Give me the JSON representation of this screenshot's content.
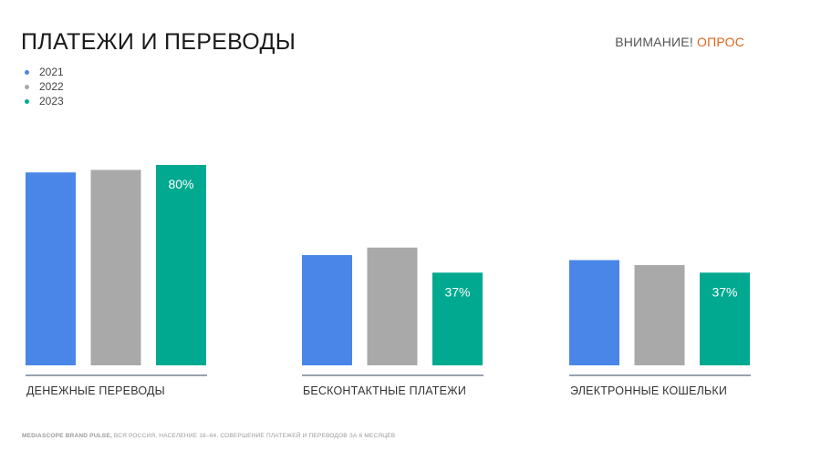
{
  "title": "ПЛАТЕЖИ И ПЕРЕВОДЫ",
  "badge": {
    "prefix": "ВНИМАНИЕ!",
    "accent": "ОПРОС"
  },
  "footnote": {
    "brand": "MEDIASCOPE BRAND PULSE,",
    "text": "ВСЯ РОССИЯ, НАСЕЛЕНИЕ 18–64, СОВЕРШЕНИЕ ПЛАТЕЖЕЙ И ПЕРЕВОДОВ ЗА 6 МЕСЯЦЕВ"
  },
  "colors": {
    "accent": "#e0661e",
    "axis": "#5a6a80",
    "label": "#ffffff"
  },
  "chart_data": {
    "type": "bar",
    "categories": [
      "ДЕНЕЖНЫЕ ПЕРЕВОДЫ",
      "БЕСКОНТАКТНЫЕ ПЛАТЕЖИ",
      "ЭЛЕКТРОННЫЕ КОШЕЛЬКИ"
    ],
    "series": [
      {
        "name": "2021",
        "color": "#4a86e8",
        "values": [
          77,
          44,
          42
        ]
      },
      {
        "name": "2022",
        "color": "#a9a9a9",
        "values": [
          78,
          47,
          40
        ]
      },
      {
        "name": "2023",
        "color": "#00a98f",
        "values": [
          80,
          37,
          37
        ],
        "labels": [
          "80%",
          "37%",
          "37%"
        ]
      }
    ],
    "ylim": [
      0,
      80
    ],
    "legend": "top-left",
    "grid": false
  }
}
